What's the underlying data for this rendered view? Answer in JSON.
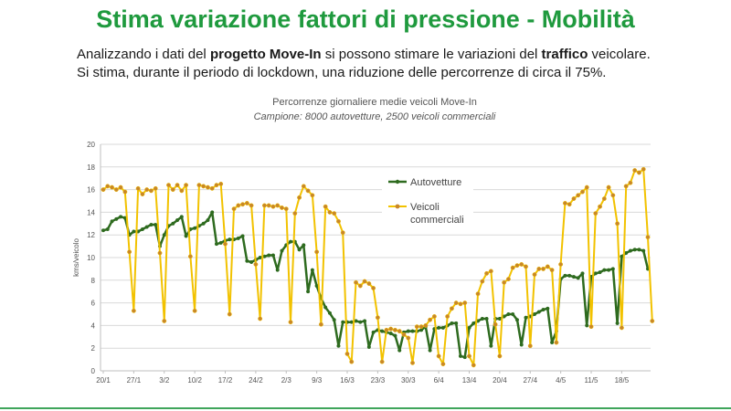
{
  "slide": {
    "title": "Stima variazione fattori di pressione - Mobilità",
    "intro_p1_a": "Analizzando i dati del ",
    "intro_p1_b": "progetto Move-In",
    "intro_p1_c": " si possono stimare le variazioni del ",
    "intro_p1_d": "traffico",
    "intro_p1_e": " veicolare.",
    "intro_p2": "Si stima, durante il periodo di lockdown, una riduzione delle percorrenze di circa il 75%."
  },
  "colors": {
    "title": "#1f9a3e",
    "cars": "#2e6b1f",
    "commercial": "#f2c200",
    "commercial_marker": "#c8862a"
  },
  "chart_data": {
    "type": "line",
    "title": "Percorrenze giornaliere medie veicoli Move-In",
    "subtitle": "Campione: 8000 autovetture, 2500 veicoli commerciali",
    "ylabel": "kms/veicolo",
    "xlabel": "",
    "ylim": [
      0,
      20
    ],
    "yticks": [
      0,
      2,
      4,
      6,
      8,
      10,
      12,
      14,
      16,
      18,
      20
    ],
    "grid": true,
    "legend_position": "inside-top-center",
    "x_tick_labels": [
      "20/1",
      "27/1",
      "3/2",
      "10/2",
      "17/2",
      "24/2",
      "2/3",
      "9/3",
      "16/3",
      "23/3",
      "30/3",
      "6/4",
      "13/4",
      "20/4",
      "27/4",
      "4/5",
      "11/5",
      "18/5"
    ],
    "series": [
      {
        "name": "Autovetture",
        "values": [
          12.4,
          12.5,
          13.2,
          13.4,
          13.6,
          13.5,
          12.0,
          12.3,
          12.3,
          12.5,
          12.7,
          12.9,
          12.9,
          11.0,
          12.0,
          12.8,
          13.0,
          13.3,
          13.6,
          11.9,
          12.5,
          12.6,
          12.8,
          13.0,
          13.3,
          14.0,
          11.2,
          11.3,
          11.5,
          11.6,
          11.6,
          11.7,
          11.9,
          9.7,
          9.6,
          9.8,
          10.0,
          10.1,
          10.2,
          10.2,
          8.9,
          10.6,
          11.1,
          11.4,
          11.4,
          10.7,
          11.1,
          7.0,
          8.9,
          7.5,
          6.4,
          5.6,
          5.1,
          4.5,
          2.2,
          4.3,
          4.3,
          4.3,
          4.4,
          4.3,
          4.4,
          2.1,
          3.4,
          3.6,
          3.5,
          3.4,
          3.3,
          3.1,
          1.8,
          3.4,
          3.5,
          3.5,
          3.5,
          3.6,
          3.9,
          1.8,
          3.7,
          3.8,
          3.8,
          4.0,
          4.2,
          4.2,
          1.3,
          1.2,
          3.8,
          4.2,
          4.4,
          4.6,
          4.6,
          2.2,
          4.6,
          4.6,
          4.8,
          5.0,
          5.0,
          4.5,
          2.3,
          4.7,
          4.8,
          5.0,
          5.2,
          5.4,
          5.5,
          2.5,
          3.5,
          8.1,
          8.4,
          8.4,
          8.3,
          8.2,
          8.6,
          4.0,
          8.3,
          8.6,
          8.7,
          8.9,
          8.9,
          9.0,
          4.2,
          10.1,
          10.4,
          10.6,
          10.7,
          10.7,
          10.6,
          9.0
        ],
        "marker": "circle"
      },
      {
        "name": "Veicoli commerciali",
        "values": [
          16.0,
          16.3,
          16.2,
          16.0,
          16.2,
          15.8,
          10.5,
          5.3,
          16.1,
          15.6,
          16.0,
          15.9,
          16.1,
          10.4,
          4.4,
          16.4,
          16.0,
          16.4,
          15.9,
          16.4,
          10.1,
          5.3,
          16.4,
          16.3,
          16.2,
          16.1,
          16.4,
          16.5,
          11.2,
          5.0,
          14.3,
          14.6,
          14.7,
          14.8,
          14.6,
          9.4,
          4.6,
          14.6,
          14.6,
          14.5,
          14.6,
          14.4,
          14.3,
          4.3,
          13.9,
          15.3,
          16.3,
          15.9,
          15.5,
          10.5,
          4.1,
          14.5,
          14.0,
          13.9,
          13.2,
          12.2,
          1.5,
          0.8,
          7.8,
          7.5,
          7.9,
          7.7,
          7.3,
          4.7,
          0.8,
          3.6,
          3.7,
          3.6,
          3.5,
          3.2,
          2.9,
          0.7,
          3.9,
          3.9,
          4.0,
          4.5,
          4.8,
          1.3,
          0.6,
          4.8,
          5.5,
          6.0,
          5.9,
          6.0,
          1.3,
          0.5,
          6.8,
          7.9,
          8.6,
          8.8,
          4.1,
          1.3,
          7.8,
          8.1,
          9.1,
          9.3,
          9.4,
          9.2,
          2.2,
          8.5,
          9.0,
          9.0,
          9.2,
          8.9,
          2.5,
          9.4,
          14.8,
          14.7,
          15.2,
          15.5,
          15.8,
          16.2,
          3.9,
          13.9,
          14.5,
          15.2,
          16.2,
          15.5,
          13.0,
          3.8,
          16.3,
          16.6,
          17.7,
          17.5,
          17.8,
          11.8,
          4.4
        ],
        "marker": "circle"
      }
    ]
  }
}
